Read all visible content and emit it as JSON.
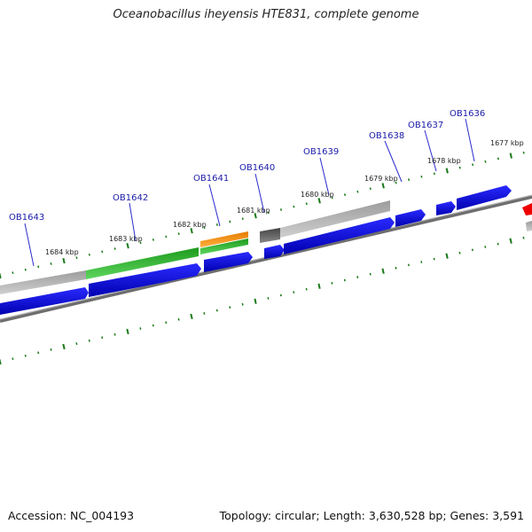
{
  "title": "Oceanobacillus iheyensis HTE831, complete genome",
  "accession": "Accession: NC_004193",
  "summary": "Topology: circular; Length: 3,630,528 bp; Genes: 3,591",
  "gene_labels": [
    {
      "id": "OB1643",
      "name": "OB1643"
    },
    {
      "id": "OB1642",
      "name": "OB1642"
    },
    {
      "id": "OB1641",
      "name": "OB1641"
    },
    {
      "id": "OB1640",
      "name": "OB1640"
    },
    {
      "id": "OB1639",
      "name": "OB1639"
    },
    {
      "id": "OB1638",
      "name": "OB1638"
    },
    {
      "id": "OB1637",
      "name": "OB1637"
    },
    {
      "id": "OB1636",
      "name": "OB1636"
    }
  ],
  "kbp_labels": [
    "1684 kbp",
    "1683 kbp",
    "1682 kbp",
    "1681 kbp",
    "1680 kbp",
    "1679 kbp",
    "1678 kbp",
    "1677 kbp"
  ],
  "colors": {
    "cds": "#0000ee",
    "cds_shade": "#000099",
    "gene_gray": "#b0b0b0",
    "gene_green": "#2bb52b",
    "gene_orange": "#f08a0a",
    "gene_dark": "#555555",
    "backbone": "#808080",
    "tick": "#1a7a1a",
    "label": "#1a1aa8",
    "highlight": "#ee0000"
  }
}
